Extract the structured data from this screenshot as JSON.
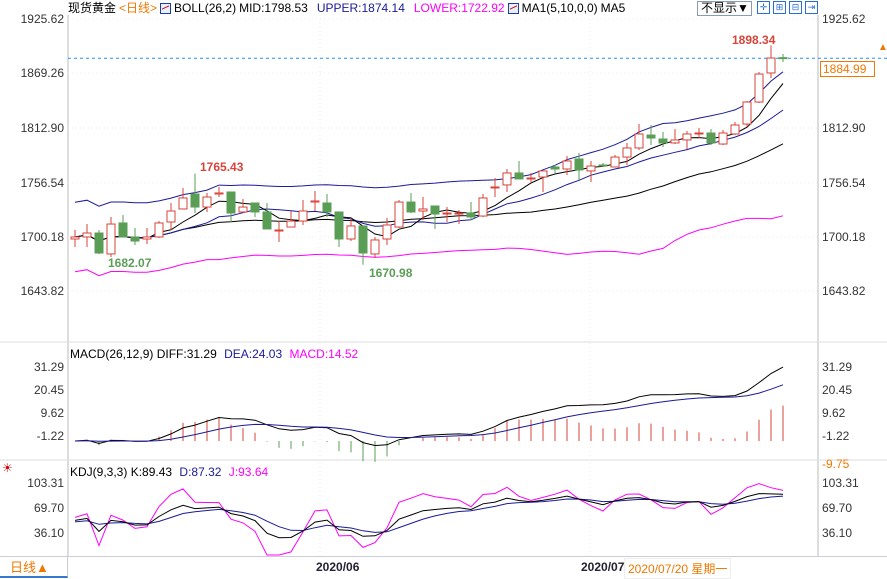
{
  "header": {
    "instrument": "现货黄金",
    "period": "<日线>",
    "boll_label": "BOLL(26,2)",
    "mid": "MID:1798.53",
    "upper": "UPPER:1874.14",
    "lower": "LOWER:1722.92",
    "ma_label": "MA1(5,10,0,0)",
    "ma5": "MA5",
    "hide_dropdown": "不显示▼",
    "tool_icons": [
      "crosshair-icon",
      "zoom-in-icon",
      "zoom-out-icon",
      "export-icon"
    ],
    "tool_glyphs": [
      "✛",
      "⊞",
      "⊟",
      "⇥"
    ]
  },
  "colors": {
    "up": "#d9443a",
    "down": "#5a9e56",
    "navy": "#1a1a9a",
    "magenta": "#ff00ff",
    "orange": "#f07800",
    "current": "#1e90ff"
  },
  "price_axis": {
    "labels": [
      "1925.62",
      "1869.26",
      "1812.90",
      "1756.54",
      "1700.18",
      "1643.82"
    ],
    "current": "1884.99"
  },
  "macd": {
    "title": "MACD(26,12,9)",
    "diff": "DIFF:31.29",
    "dea": "DEA:24.03",
    "macd": "MACD:14.52",
    "axis": [
      "31.29",
      "20.45",
      "9.62",
      "-1.22"
    ],
    "axis_low": "-9.75"
  },
  "kdj": {
    "title": "KDJ(9,3,3)",
    "k": "K:89.43",
    "d": "D:87.32",
    "j": "J:93.64",
    "axis": [
      "103.31",
      "69.70",
      "36.10"
    ]
  },
  "annotations": {
    "high1": "1765.43",
    "low1": "1682.07",
    "low2": "1670.98",
    "high2": "1898.34"
  },
  "footer": {
    "period": "日线▲",
    "month1": "2020/06",
    "month2": "2020/07",
    "cursor_date": "2020/07/20 星期一"
  },
  "chart_data": {
    "type": "candlestick",
    "ohlc": [
      [
        1697.7,
        1707.0,
        1689.4,
        1699.8
      ],
      [
        1699.8,
        1713.2,
        1689.4,
        1703.9
      ],
      [
        1703.9,
        1707.0,
        1682.07,
        1683.2
      ],
      [
        1682.2,
        1720.5,
        1679.1,
        1713.2
      ],
      [
        1714.3,
        1722.6,
        1699.8,
        1699.8
      ],
      [
        1699.8,
        1709.1,
        1691.5,
        1695.6
      ],
      [
        1697.7,
        1709.1,
        1692.5,
        1699.8
      ],
      [
        1699.8,
        1716.3,
        1698.7,
        1714.3
      ],
      [
        1715.3,
        1735.0,
        1707.0,
        1726.7
      ],
      [
        1728.8,
        1750.5,
        1728.8,
        1740.2
      ],
      [
        1744.3,
        1765.43,
        1724.6,
        1730.8
      ],
      [
        1730.8,
        1745.4,
        1725.7,
        1741.2
      ],
      [
        1744.3,
        1751.6,
        1741.2,
        1745.4
      ],
      [
        1746.4,
        1746.4,
        1715.3,
        1724.6
      ],
      [
        1725.7,
        1739.1,
        1724.6,
        1730.8
      ],
      [
        1735.0,
        1735.0,
        1720.5,
        1725.7
      ],
      [
        1725.7,
        1735.0,
        1708.1,
        1708.1
      ],
      [
        1706.0,
        1716.3,
        1694.6,
        1707.0
      ],
      [
        1710.1,
        1726.7,
        1710.1,
        1716.3
      ],
      [
        1716.3,
        1738.1,
        1712.2,
        1726.7
      ],
      [
        1736.0,
        1747.4,
        1726.7,
        1737.1
      ],
      [
        1735.0,
        1744.3,
        1720.5,
        1725.7
      ],
      [
        1725.7,
        1725.7,
        1689.4,
        1697.7
      ],
      [
        1697.7,
        1719.5,
        1695.6,
        1711.2
      ],
      [
        1711.2,
        1711.2,
        1670.98,
        1683.2
      ],
      [
        1682.2,
        1699.8,
        1678.0,
        1696.7
      ],
      [
        1697.7,
        1719.5,
        1691.5,
        1712.2
      ],
      [
        1710.1,
        1738.1,
        1709.1,
        1736.0
      ],
      [
        1736.0,
        1745.4,
        1724.6,
        1725.7
      ],
      [
        1726.7,
        1741.2,
        1717.4,
        1728.8
      ],
      [
        1731.9,
        1731.9,
        1708.1,
        1723.6
      ],
      [
        1724.0,
        1730.8,
        1715.3,
        1724.6
      ],
      [
        1724.0,
        1727.7,
        1713.2,
        1724.6
      ],
      [
        1724.6,
        1736.0,
        1717.4,
        1720.5
      ],
      [
        1721.5,
        1744.3,
        1720.5,
        1740.2
      ],
      [
        1751.0,
        1760.9,
        1741.2,
        1751.6
      ],
      [
        1753.7,
        1770.2,
        1746.4,
        1766.1
      ],
      [
        1766.1,
        1778.5,
        1759.9,
        1759.9
      ],
      [
        1760.5,
        1766.1,
        1755.7,
        1760.9
      ],
      [
        1761.9,
        1768.2,
        1746.4,
        1768.2
      ],
      [
        1772.3,
        1774.4,
        1766.1,
        1770.2
      ],
      [
        1770.2,
        1783.7,
        1764.0,
        1778.5
      ],
      [
        1780.6,
        1786.8,
        1758.8,
        1769.2
      ],
      [
        1768.2,
        1778.5,
        1756.8,
        1773.3
      ],
      [
        1774.4,
        1776.4,
        1772.3,
        1773.3
      ],
      [
        1772.3,
        1784.7,
        1772.3,
        1782.6
      ],
      [
        1782.6,
        1797.2,
        1774.4,
        1792.0
      ],
      [
        1792.0,
        1816.8,
        1789.9,
        1806.5
      ],
      [
        1805.4,
        1815.8,
        1795.1,
        1802.3
      ],
      [
        1801.3,
        1808.5,
        1793.0,
        1797.2
      ],
      [
        1797.2,
        1811.7,
        1796.1,
        1800.3
      ],
      [
        1800.3,
        1809.6,
        1790.9,
        1806.5
      ],
      [
        1807.0,
        1812.7,
        1802.3,
        1807.5
      ],
      [
        1807.5,
        1811.7,
        1795.1,
        1797.2
      ],
      [
        1796.1,
        1810.6,
        1795.1,
        1807.5
      ],
      [
        1806.5,
        1818.9,
        1805.4,
        1815.8
      ],
      [
        1816.8,
        1840.7,
        1813.7,
        1839.6
      ],
      [
        1839.6,
        1870.7,
        1838.6,
        1868.6
      ],
      [
        1869.7,
        1898.34,
        1864.5,
        1885.2
      ],
      [
        1885.6,
        1889.4,
        1881.1,
        1884.99
      ]
    ],
    "price_range": [
      1643.82,
      1925.62
    ],
    "macd_range": [
      -9.75,
      31.29
    ],
    "kdj_range": [
      36.1,
      103.31
    ]
  }
}
